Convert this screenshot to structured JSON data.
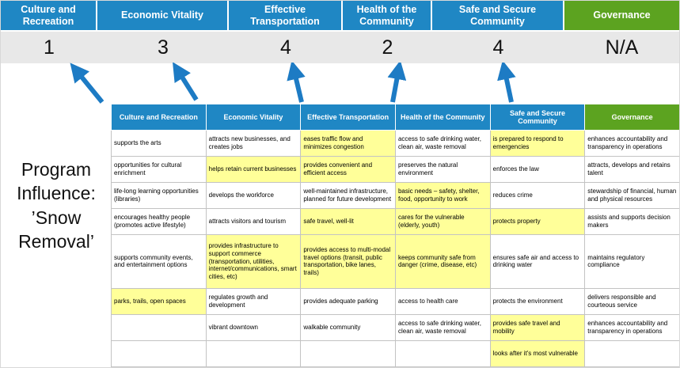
{
  "colors": {
    "header_blue": "#1f87c4",
    "header_green": "#5ca320",
    "highlight_yellow": "#ffff99",
    "score_strip_gray": "#e8e8e8",
    "arrow_blue": "#1d7bc4"
  },
  "banner": {
    "columns": [
      {
        "label": "Culture and Recreation",
        "score": "1",
        "color": "blue"
      },
      {
        "label": "Economic Vitality",
        "score": "3",
        "color": "blue"
      },
      {
        "label": "Effective Transportation",
        "score": "4",
        "color": "blue"
      },
      {
        "label": "Health of the Community",
        "score": "2",
        "color": "blue"
      },
      {
        "label": "Safe and Secure Community",
        "score": "4",
        "color": "blue"
      },
      {
        "label": "Governance",
        "score": "N/A",
        "color": "green"
      }
    ]
  },
  "program_label": {
    "text": "Program Influence: ’Snow Removal’"
  },
  "matrix": {
    "headers": [
      {
        "label": "Culture and Recreation",
        "color": "blue"
      },
      {
        "label": "Economic Vitality",
        "color": "blue"
      },
      {
        "label": "Effective Transportation",
        "color": "blue"
      },
      {
        "label": "Health of the Community",
        "color": "blue"
      },
      {
        "label": "Safe and Secure Community",
        "color": "blue"
      },
      {
        "label": "Governance",
        "color": "green"
      }
    ],
    "rows": [
      {
        "cells": [
          {
            "text": "supports the arts",
            "highlight": false
          },
          {
            "text": "attracts new businesses, and creates jobs",
            "highlight": false
          },
          {
            "text": "eases traffic flow and minimizes congestion",
            "highlight": true
          },
          {
            "text": "access to safe drinking water, clean air, waste removal",
            "highlight": false
          },
          {
            "text": "is prepared to respond to emergencies",
            "highlight": true
          },
          {
            "text": "enhances accountability and transparency in operations",
            "highlight": false
          }
        ]
      },
      {
        "cells": [
          {
            "text": "opportunities for cultural enrichment",
            "highlight": false
          },
          {
            "text": "helps retain current businesses",
            "highlight": true
          },
          {
            "text": "provides convenient and efficient access",
            "highlight": true
          },
          {
            "text": "preserves the natural environment",
            "highlight": false
          },
          {
            "text": "enforces the law",
            "highlight": false
          },
          {
            "text": "attracts, develops and retains talent",
            "highlight": false
          }
        ]
      },
      {
        "cells": [
          {
            "text": "life-long learning opportunities (libraries)",
            "highlight": false
          },
          {
            "text": "develops the workforce",
            "highlight": false
          },
          {
            "text": "well-maintained infrastructure, planned for future development",
            "highlight": false
          },
          {
            "text": "basic needs – safety, shelter, food, opportunity to work",
            "highlight": true
          },
          {
            "text": "reduces crime",
            "highlight": false
          },
          {
            "text": "stewardship of financial, human and physical resources",
            "highlight": false
          }
        ]
      },
      {
        "cells": [
          {
            "text": "encourages healthy people (promotes active lifestyle)",
            "highlight": false
          },
          {
            "text": "attracts visitors and tourism",
            "highlight": false
          },
          {
            "text": "safe travel, well-lit",
            "highlight": true
          },
          {
            "text": "cares for the vulnerable (elderly, youth)",
            "highlight": true
          },
          {
            "text": "protects property",
            "highlight": true
          },
          {
            "text": "assists and supports decision makers",
            "highlight": false
          }
        ]
      },
      {
        "cells": [
          {
            "text": "supports community events, and entertainment options",
            "highlight": false
          },
          {
            "text": "provides infrastructure to support commerce (transportation, utilities, internet/communications, smart cities, etc)",
            "highlight": true
          },
          {
            "text": "provides access to multi-modal travel options (transit, public transportation, bike lanes, trails)",
            "highlight": true
          },
          {
            "text": "keeps community safe from danger (crime, disease, etc)",
            "highlight": true
          },
          {
            "text": "ensures safe air and access to drinking water",
            "highlight": false
          },
          {
            "text": "maintains regulatory compliance",
            "highlight": false
          }
        ]
      },
      {
        "cells": [
          {
            "text": "parks, trails, open spaces",
            "highlight": true
          },
          {
            "text": "regulates growth and development",
            "highlight": false
          },
          {
            "text": "provides adequate parking",
            "highlight": false
          },
          {
            "text": "access to health care",
            "highlight": false
          },
          {
            "text": "protects the environment",
            "highlight": false
          },
          {
            "text": "delivers responsible and courteous service",
            "highlight": false
          }
        ]
      },
      {
        "cells": [
          {
            "text": "",
            "highlight": false
          },
          {
            "text": "vibrant downtown",
            "highlight": false
          },
          {
            "text": "walkable community",
            "highlight": false
          },
          {
            "text": "access to safe drinking water, clean air, waste removal",
            "highlight": false
          },
          {
            "text": "provides safe travel and mobility",
            "highlight": true
          },
          {
            "text": "enhances accountability and transparency in operations",
            "highlight": false
          }
        ]
      },
      {
        "cells": [
          {
            "text": "",
            "highlight": false
          },
          {
            "text": "",
            "highlight": false
          },
          {
            "text": "",
            "highlight": false
          },
          {
            "text": "",
            "highlight": false
          },
          {
            "text": "looks after it's most vulnerable",
            "highlight": true
          },
          {
            "text": "",
            "highlight": false
          }
        ]
      }
    ]
  }
}
